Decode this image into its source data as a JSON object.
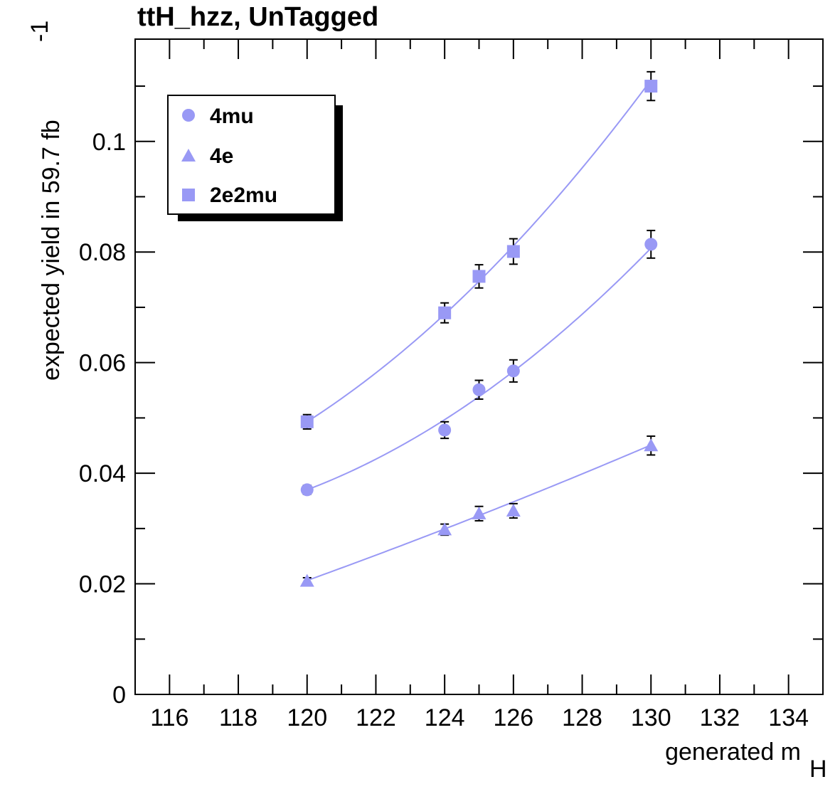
{
  "chart_data": {
    "type": "scatter",
    "title": "ttH_hzz, UnTagged",
    "xlabel": "generated m",
    "xlabel_sub": "H",
    "ylabel": "expected yield in 59.7 fb",
    "ylabel_sup": "-1",
    "xlim": [
      115,
      135
    ],
    "ylim": [
      0,
      0.1185
    ],
    "x_ticks": [
      116,
      118,
      120,
      122,
      124,
      126,
      128,
      130,
      132,
      134
    ],
    "y_ticks": [
      0,
      0.02,
      0.04,
      0.06,
      0.08,
      0.1
    ],
    "y_tick_labels": [
      "0",
      "0.02",
      "0.04",
      "0.06",
      "0.08",
      "0.1"
    ],
    "grid": false,
    "legend_position": "top-left",
    "color": "#9999f5",
    "series": [
      {
        "name": "4mu",
        "marker": "circle",
        "x": [
          120,
          124,
          125,
          126,
          130
        ],
        "y": [
          0.037,
          0.0478,
          0.0551,
          0.0585,
          0.0814
        ],
        "yerr": [
          0.0008,
          0.0015,
          0.0017,
          0.002,
          0.0025
        ],
        "fit_coeffs": [
          0.037,
          0.00237,
          0.0002
        ]
      },
      {
        "name": "4e",
        "marker": "triangle",
        "x": [
          120,
          124,
          125,
          126,
          130
        ],
        "y": [
          0.0205,
          0.0298,
          0.0327,
          0.0332,
          0.045
        ],
        "yerr": [
          0.0006,
          0.001,
          0.0013,
          0.0013,
          0.0017
        ],
        "fit_coeffs": [
          0.0206,
          0.00225,
          2e-05
        ]
      },
      {
        "name": "2e2mu",
        "marker": "square",
        "x": [
          120,
          124,
          125,
          126,
          130
        ],
        "y": [
          0.0493,
          0.069,
          0.0756,
          0.0801,
          0.11
        ],
        "yerr": [
          0.0013,
          0.0018,
          0.0021,
          0.0023,
          0.0026
        ],
        "fit_coeffs": [
          0.0493,
          0.00398,
          0.00022
        ]
      }
    ]
  }
}
